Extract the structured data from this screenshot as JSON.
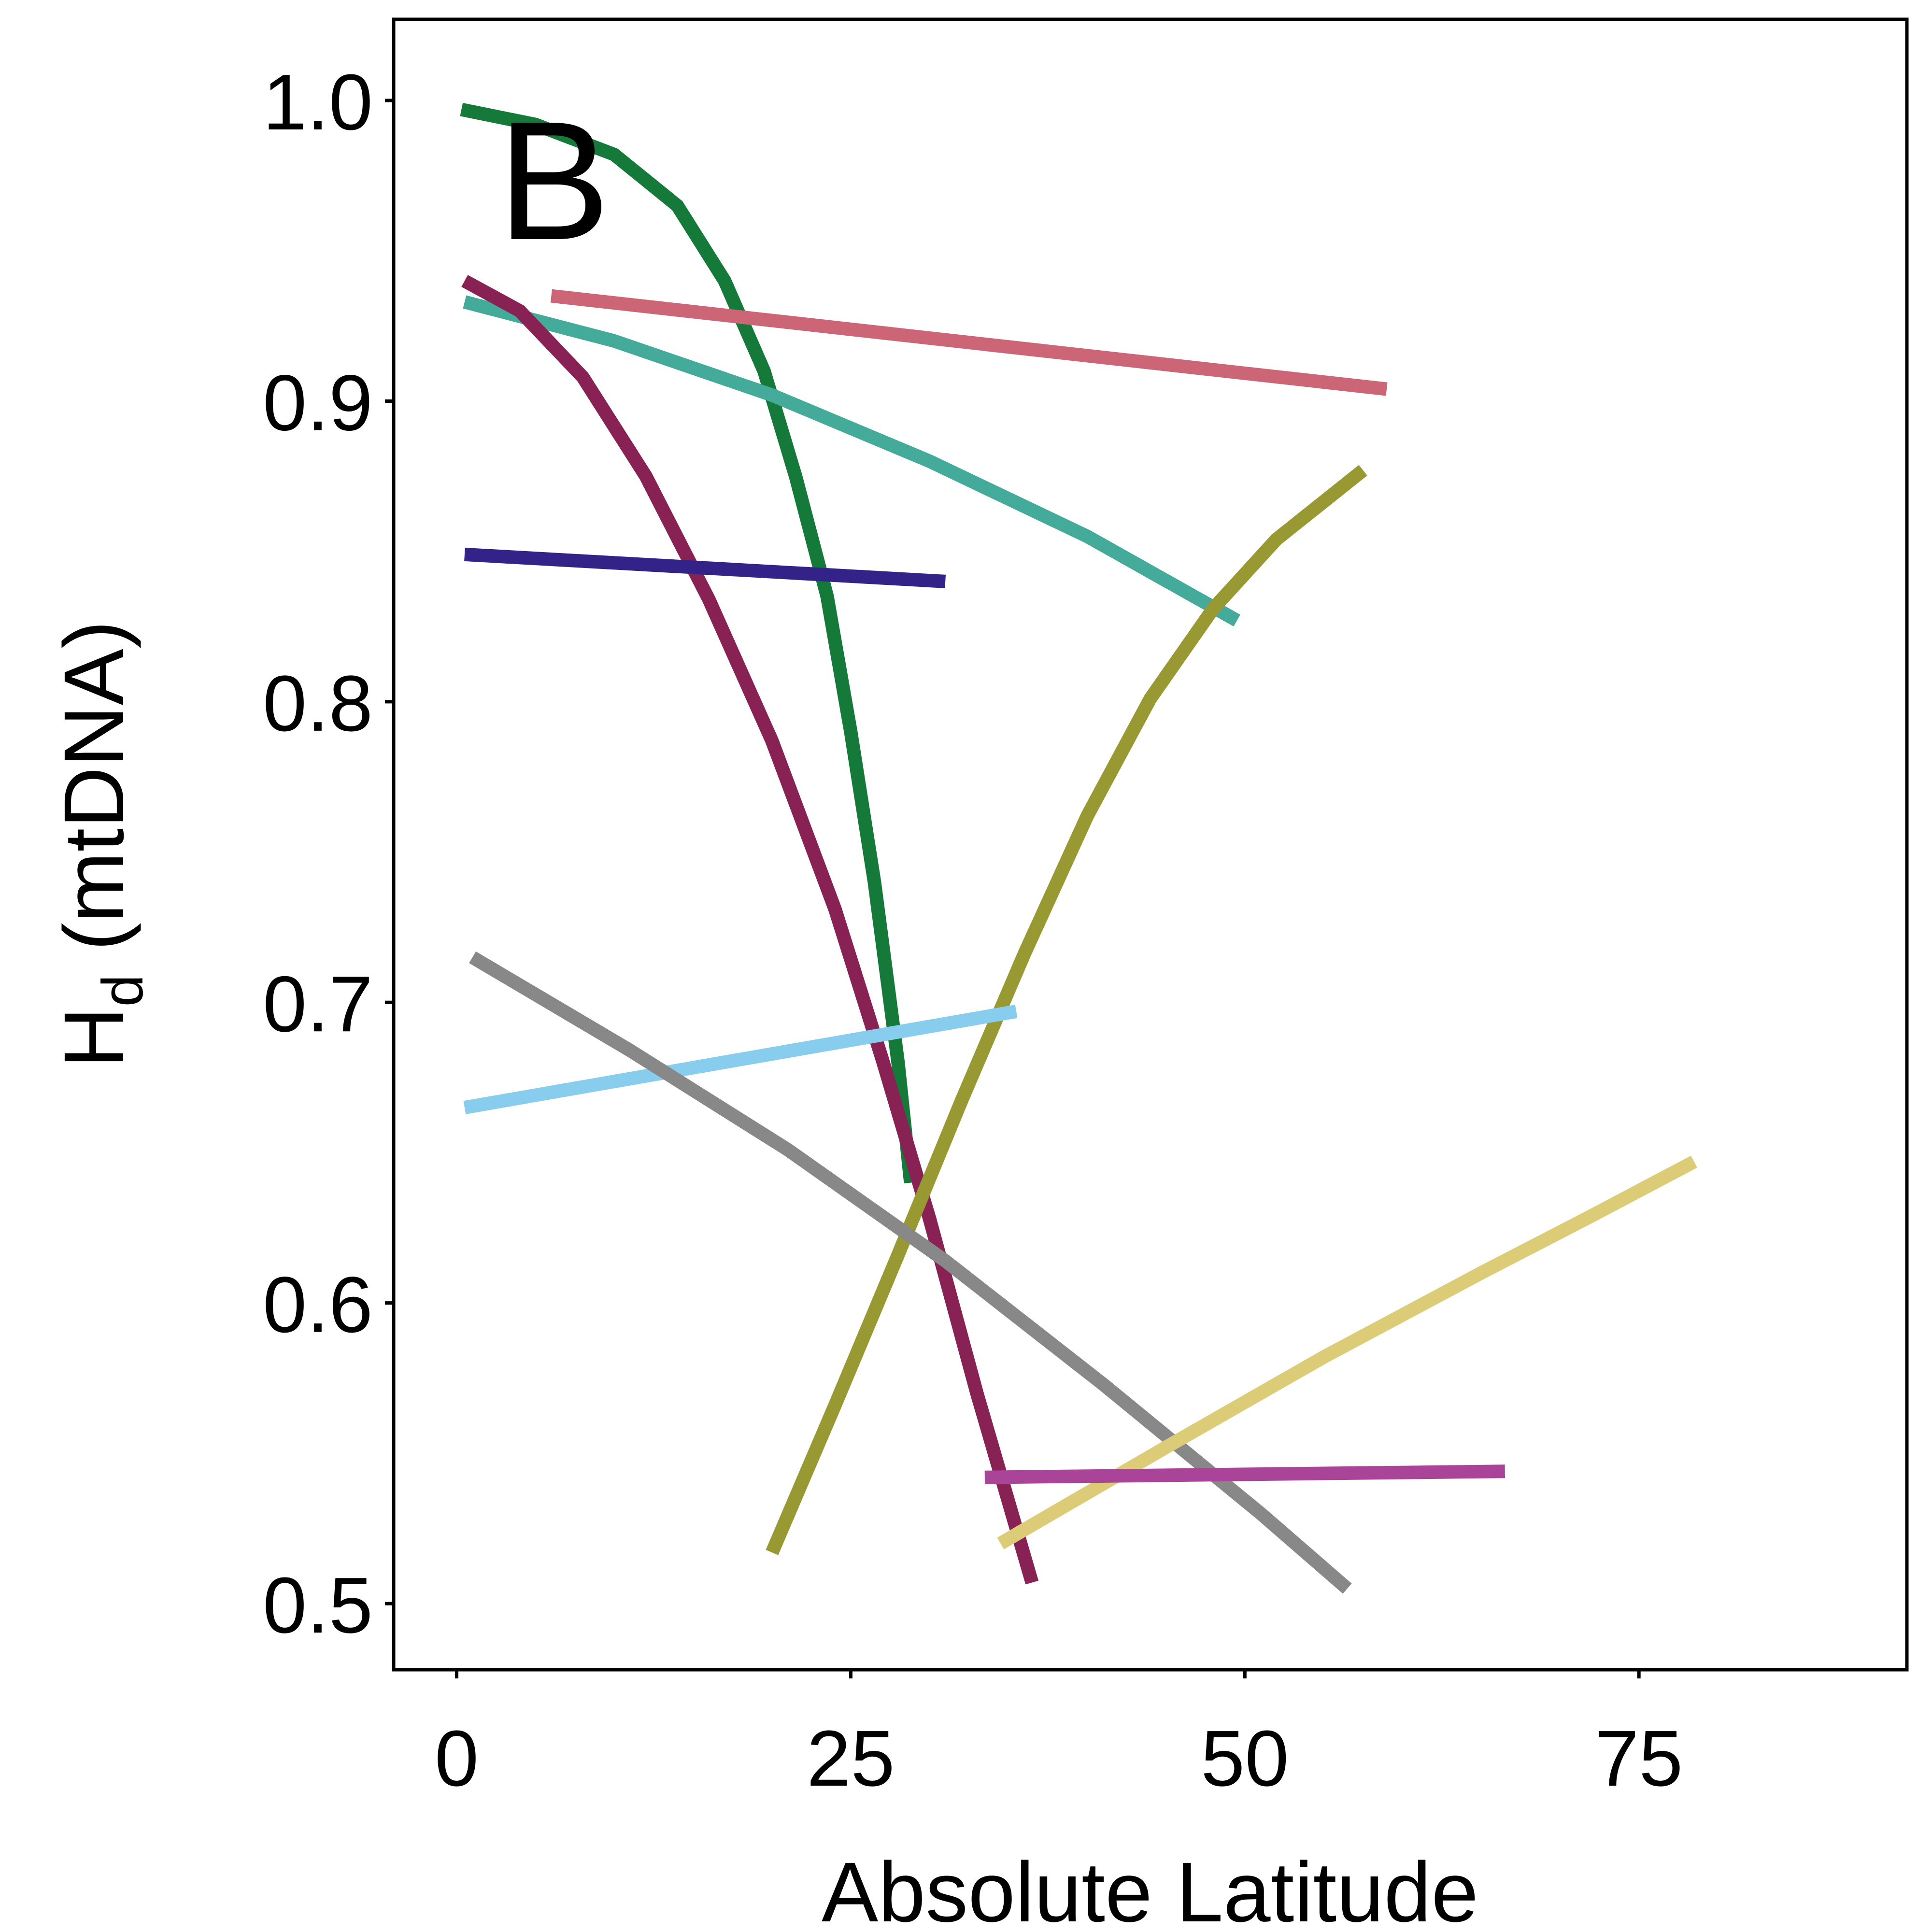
{
  "chart_data": {
    "type": "line",
    "panel_label": "B",
    "xlabel": "Absolute Latitude",
    "ylabel": "H",
    "ylabel_subscript": "d",
    "ylabel_suffix": " (mtDNA)",
    "xlim": [
      -4,
      92
    ],
    "ylim": [
      0.478,
      1.027
    ],
    "x_ticks": [
      0,
      25,
      50,
      75
    ],
    "x_tick_labels": [
      "0",
      "25",
      "50",
      "75"
    ],
    "y_ticks": [
      0.5,
      0.6,
      0.7,
      0.8,
      0.9,
      1.0
    ],
    "y_tick_labels": [
      "0.5",
      "0.6",
      "0.7",
      "0.8",
      "0.9",
      "1.0"
    ],
    "grid": false,
    "legend": "none",
    "series": [
      {
        "color": "#15793A",
        "points": [
          [
            0.3,
            0.997
          ],
          [
            5,
            0.992
          ],
          [
            10,
            0.982
          ],
          [
            14,
            0.965
          ],
          [
            17,
            0.94
          ],
          [
            19.5,
            0.91
          ],
          [
            21.5,
            0.875
          ],
          [
            23.5,
            0.835
          ],
          [
            25,
            0.79
          ],
          [
            26.5,
            0.74
          ],
          [
            28,
            0.68
          ],
          [
            28.8,
            0.64
          ]
        ]
      },
      {
        "color": "#CC6677",
        "points": [
          [
            6,
            0.935
          ],
          [
            59,
            0.904
          ]
        ]
      },
      {
        "color": "#44AA99",
        "points": [
          [
            0.5,
            0.933
          ],
          [
            10,
            0.92
          ],
          [
            20,
            0.902
          ],
          [
            30,
            0.88
          ],
          [
            40,
            0.855
          ],
          [
            49.5,
            0.827
          ]
        ]
      },
      {
        "color": "#882255",
        "points": [
          [
            0.5,
            0.94
          ],
          [
            4,
            0.93
          ],
          [
            8,
            0.908
          ],
          [
            12,
            0.875
          ],
          [
            16,
            0.834
          ],
          [
            20,
            0.787
          ],
          [
            24,
            0.731
          ],
          [
            27,
            0.681
          ],
          [
            30,
            0.628
          ],
          [
            33,
            0.57
          ],
          [
            36.5,
            0.507
          ]
        ]
      },
      {
        "color": "#332288",
        "points": [
          [
            0.5,
            0.849
          ],
          [
            31,
            0.84
          ]
        ]
      },
      {
        "color": "#999933",
        "points": [
          [
            20,
            0.517
          ],
          [
            24,
            0.566
          ],
          [
            28,
            0.616
          ],
          [
            32,
            0.667
          ],
          [
            36,
            0.716
          ],
          [
            40,
            0.762
          ],
          [
            44,
            0.801
          ],
          [
            48,
            0.831
          ],
          [
            52,
            0.854
          ],
          [
            57.5,
            0.877
          ]
        ]
      },
      {
        "color": "#88CCEE",
        "points": [
          [
            0.5,
            0.665
          ],
          [
            35.5,
            0.697
          ]
        ]
      },
      {
        "color": "#888888",
        "points": [
          [
            1,
            0.715
          ],
          [
            11,
            0.684
          ],
          [
            21,
            0.651
          ],
          [
            31,
            0.614
          ],
          [
            41,
            0.573
          ],
          [
            51,
            0.53
          ],
          [
            56.5,
            0.505
          ]
        ]
      },
      {
        "color": "#DDCC77",
        "points": [
          [
            34.5,
            0.52
          ],
          [
            45,
            0.552
          ],
          [
            55,
            0.582
          ],
          [
            65,
            0.61
          ],
          [
            72,
            0.629
          ],
          [
            78.5,
            0.647
          ]
        ]
      },
      {
        "color": "#AA4499",
        "points": [
          [
            33.5,
            0.542
          ],
          [
            66.5,
            0.544
          ]
        ]
      }
    ]
  }
}
